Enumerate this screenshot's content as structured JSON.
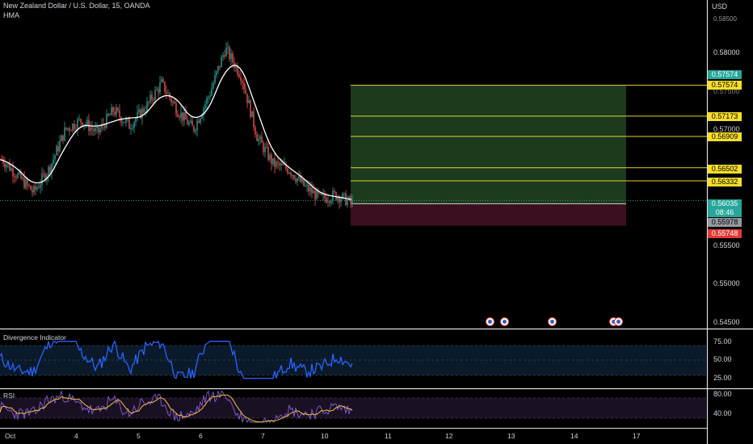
{
  "header": {
    "symbol_line": "New Zealand Dollar / U.S. Dollar, 15, OANDA",
    "indicator_line": "HMA"
  },
  "price_axis": {
    "currency": "USD",
    "top_partial": "0.58500",
    "labels": [
      "0.58000",
      "0.57500",
      "0.57000",
      "0.56500",
      "0.55500",
      "0.55000",
      "0.54500"
    ]
  },
  "badges": {
    "target_green": "0.57574",
    "target_yellow": "0.57574",
    "level_1": "0.57173",
    "level_2": "0.56909",
    "level_3": "0.56502",
    "level_4": "0.56332",
    "current_price": "0.56035",
    "countdown": "08:46",
    "gray_level": "0.55978",
    "stop_loss": "0.55748"
  },
  "colors": {
    "profit_zone": "#1c3a1c",
    "loss_zone": "#3b0f1f",
    "level_line": "#e6d233",
    "current_price_badge": "#26a69a",
    "stop_badge": "#e53935",
    "divergence_line": "#2962ff",
    "rsi_line": "#7e57c2",
    "rsi_ma": "#f5c242"
  },
  "divergence_pane": {
    "title": "Divergence Indicator",
    "labels": [
      "75.00",
      "50.00",
      "25.00"
    ]
  },
  "rsi_pane": {
    "title": "RSI",
    "labels": [
      "80.00",
      "40.00"
    ]
  },
  "time_axis": {
    "labels": [
      "Oct",
      "4",
      "5",
      "6",
      "7",
      "10",
      "11",
      "12",
      "13",
      "14",
      "17"
    ]
  },
  "chart_data": {
    "type": "candlestick",
    "title": "New Zealand Dollar / U.S. Dollar, 15, OANDA",
    "ylabel": "USD",
    "ylim": [
      0.5446,
      0.5858
    ],
    "x_ticks": [
      "Oct",
      "4",
      "5",
      "6",
      "7",
      "10",
      "11",
      "12",
      "13",
      "14",
      "17"
    ],
    "close_path": [
      {
        "x": "Oct 3 00:00",
        "y": 0.5662
      },
      {
        "x": "Oct 3 06:00",
        "y": 0.564
      },
      {
        "x": "Oct 3 12:00",
        "y": 0.5618
      },
      {
        "x": "Oct 3 18:00",
        "y": 0.565
      },
      {
        "x": "Oct 4 00:00",
        "y": 0.57
      },
      {
        "x": "Oct 4 06:00",
        "y": 0.5712
      },
      {
        "x": "Oct 4 12:00",
        "y": 0.5695
      },
      {
        "x": "Oct 4 18:00",
        "y": 0.5725
      },
      {
        "x": "Oct 5 00:00",
        "y": 0.5705
      },
      {
        "x": "Oct 5 06:00",
        "y": 0.5728
      },
      {
        "x": "Oct 5 12:00",
        "y": 0.576
      },
      {
        "x": "Oct 5 18:00",
        "y": 0.5725
      },
      {
        "x": "Oct 6 00:00",
        "y": 0.57
      },
      {
        "x": "Oct 6 06:00",
        "y": 0.5745
      },
      {
        "x": "Oct 6 12:00",
        "y": 0.5805
      },
      {
        "x": "Oct 6 18:00",
        "y": 0.577
      },
      {
        "x": "Oct 7 00:00",
        "y": 0.569
      },
      {
        "x": "Oct 7 06:00",
        "y": 0.5655
      },
      {
        "x": "Oct 7 12:00",
        "y": 0.5648
      },
      {
        "x": "Oct 7 18:00",
        "y": 0.5625
      },
      {
        "x": "Oct 10 00:00",
        "y": 0.561
      },
      {
        "x": "Oct 10 06:00",
        "y": 0.5615
      },
      {
        "x": "Oct 10 12:00",
        "y": 0.5603
      }
    ],
    "position": {
      "entry": 0.56035,
      "target": 0.57574,
      "stop": 0.55748
    },
    "horizontal_levels": [
      0.57574,
      0.57173,
      0.56909,
      0.56502,
      0.56332
    ]
  }
}
